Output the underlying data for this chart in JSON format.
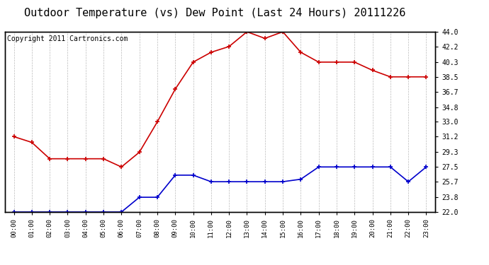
{
  "title": "Outdoor Temperature (vs) Dew Point (Last 24 Hours) 20111226",
  "copyright": "Copyright 2011 Cartronics.com",
  "x_labels": [
    "00:00",
    "01:00",
    "02:00",
    "03:00",
    "04:00",
    "05:00",
    "06:00",
    "07:00",
    "08:00",
    "09:00",
    "10:00",
    "11:00",
    "12:00",
    "13:00",
    "14:00",
    "15:00",
    "16:00",
    "17:00",
    "18:00",
    "19:00",
    "20:00",
    "21:00",
    "22:00",
    "23:00"
  ],
  "temp_values": [
    31.2,
    30.5,
    28.5,
    28.5,
    28.5,
    28.5,
    27.5,
    29.3,
    33.0,
    37.0,
    40.3,
    41.5,
    42.2,
    44.0,
    43.2,
    44.0,
    41.5,
    40.3,
    40.3,
    40.3,
    39.3,
    38.5,
    38.5,
    38.5
  ],
  "dew_values": [
    22.0,
    22.0,
    22.0,
    22.0,
    22.0,
    22.0,
    22.0,
    23.8,
    23.8,
    26.5,
    26.5,
    25.7,
    25.7,
    25.7,
    25.7,
    25.7,
    26.0,
    27.5,
    27.5,
    27.5,
    27.5,
    27.5,
    25.7,
    27.5
  ],
  "temp_color": "#cc0000",
  "dew_color": "#0000cc",
  "ylim_min": 22.0,
  "ylim_max": 44.0,
  "yticks": [
    22.0,
    23.8,
    25.7,
    27.5,
    29.3,
    31.2,
    33.0,
    34.8,
    36.7,
    38.5,
    40.3,
    42.2,
    44.0
  ],
  "bg_color": "#ffffff",
  "grid_color": "#bbbbbb",
  "title_fontsize": 11,
  "copyright_fontsize": 7
}
